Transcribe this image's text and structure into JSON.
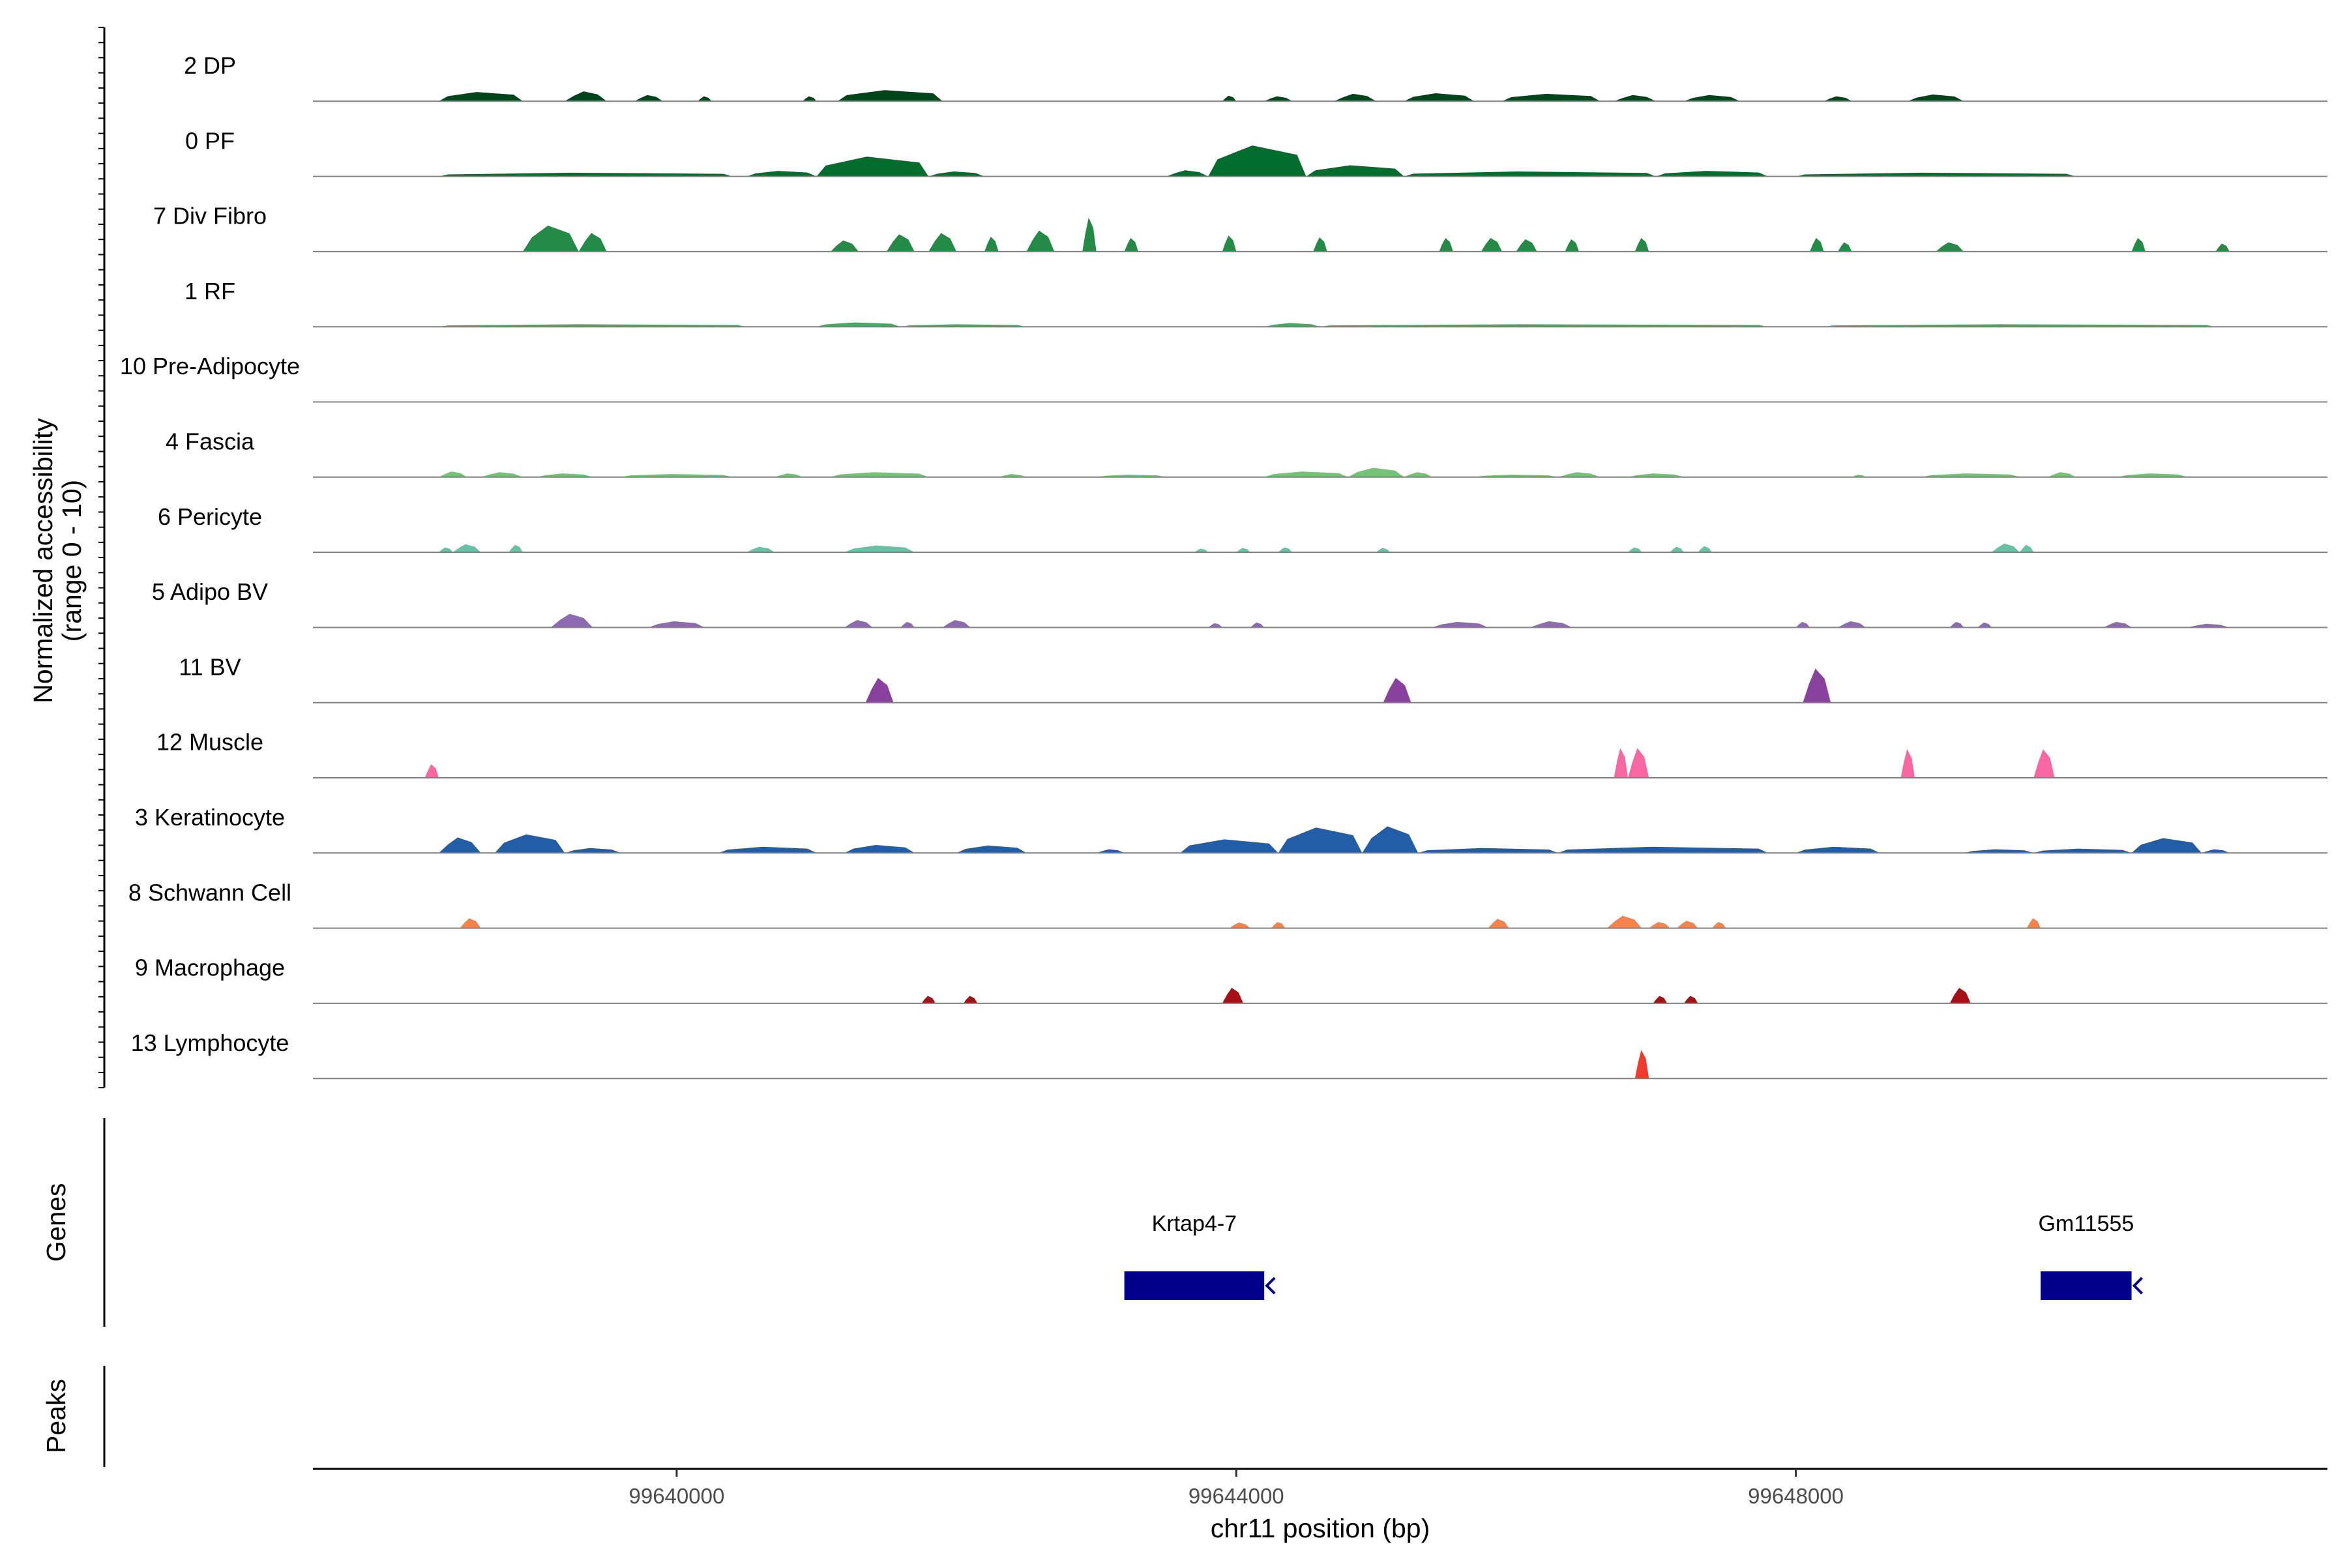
{
  "chart_data": {
    "type": "area",
    "layout": "stacked-tracks",
    "y_axis_label_line1": "Normalized accessibility",
    "y_axis_label_line2": "(range 0 - 10)",
    "ylim": [
      0,
      10
    ],
    "xlabel": "chr11 position (bp)",
    "xlim": [
      99637400,
      99651800
    ],
    "x_ticks": [
      {
        "value": 99640000,
        "label": "99640000"
      },
      {
        "value": 99644000,
        "label": "99644000"
      },
      {
        "value": 99648000,
        "label": "99648000"
      }
    ],
    "tracks": [
      {
        "name": "2 DP",
        "color": "#00441b",
        "peaks": [
          [
            99638300,
            99638900,
            1.5
          ],
          [
            99639200,
            99639500,
            1.6
          ],
          [
            99639700,
            99639900,
            1.0
          ],
          [
            99640150,
            99640250,
            0.8
          ],
          [
            99640900,
            99641000,
            0.8
          ],
          [
            99641150,
            99641900,
            1.8
          ],
          [
            99643900,
            99644000,
            0.9
          ],
          [
            99644200,
            99644400,
            0.8
          ],
          [
            99644700,
            99645000,
            1.2
          ],
          [
            99645200,
            99645700,
            1.3
          ],
          [
            99645900,
            99646600,
            1.2
          ],
          [
            99646700,
            99647000,
            1.0
          ],
          [
            99647200,
            99647600,
            1.0
          ],
          [
            99648200,
            99648400,
            0.8
          ],
          [
            99648800,
            99649200,
            1.1
          ]
        ]
      },
      {
        "name": "0 PF",
        "color": "#006d2c",
        "peaks": [
          [
            99638300,
            99640400,
            0.6
          ],
          [
            99640500,
            99641000,
            0.9
          ],
          [
            99641000,
            99641800,
            3.2
          ],
          [
            99641800,
            99642200,
            0.8
          ],
          [
            99643500,
            99643800,
            1.0
          ],
          [
            99643800,
            99644500,
            5.0
          ],
          [
            99644500,
            99645200,
            1.8
          ],
          [
            99645200,
            99647000,
            0.8
          ],
          [
            99647000,
            99647800,
            0.9
          ],
          [
            99648000,
            99650000,
            0.6
          ]
        ]
      },
      {
        "name": "7 Div Fibro",
        "color": "#238b45",
        "peaks": [
          [
            99638900,
            99639300,
            4.2
          ],
          [
            99639300,
            99639500,
            3.0
          ],
          [
            99641100,
            99641300,
            1.8
          ],
          [
            99641500,
            99641700,
            2.8
          ],
          [
            99641800,
            99642000,
            3.0
          ],
          [
            99642200,
            99642300,
            2.4
          ],
          [
            99642500,
            99642700,
            3.4
          ],
          [
            99642900,
            99643000,
            5.5
          ],
          [
            99643200,
            99643300,
            2.2
          ],
          [
            99643900,
            99644000,
            2.6
          ],
          [
            99644550,
            99644650,
            2.3
          ],
          [
            99645450,
            99645550,
            2.2
          ],
          [
            99645750,
            99645900,
            2.2
          ],
          [
            99646000,
            99646150,
            2.0
          ],
          [
            99646350,
            99646450,
            2.0
          ],
          [
            99646850,
            99646950,
            2.2
          ],
          [
            99648100,
            99648200,
            2.2
          ],
          [
            99648300,
            99648400,
            1.5
          ],
          [
            99649000,
            99649200,
            1.5
          ],
          [
            99650400,
            99650500,
            2.2
          ],
          [
            99651000,
            99651100,
            1.3
          ]
        ]
      },
      {
        "name": "1 RF",
        "color": "#41ab5d",
        "peaks": [
          [
            99638300,
            99640500,
            0.4
          ],
          [
            99641000,
            99641600,
            0.7
          ],
          [
            99641600,
            99642500,
            0.4
          ],
          [
            99644200,
            99644600,
            0.6
          ],
          [
            99644600,
            99647800,
            0.4
          ],
          [
            99648200,
            99651000,
            0.4
          ]
        ]
      },
      {
        "name": "10 Pre-Adipocyte",
        "color": "#74c476",
        "peaks": []
      },
      {
        "name": "4 Fascia",
        "color": "#74c476",
        "peaks": [
          [
            99638300,
            99638500,
            0.9
          ],
          [
            99638600,
            99638900,
            0.8
          ],
          [
            99639000,
            99639400,
            0.6
          ],
          [
            99639600,
            99640400,
            0.5
          ],
          [
            99640700,
            99640900,
            0.6
          ],
          [
            99641100,
            99641800,
            0.8
          ],
          [
            99642300,
            99642500,
            0.5
          ],
          [
            99643000,
            99643500,
            0.4
          ],
          [
            99644200,
            99644800,
            0.9
          ],
          [
            99644800,
            99645200,
            1.5
          ],
          [
            99645200,
            99645400,
            0.8
          ],
          [
            99645700,
            99646300,
            0.4
          ],
          [
            99646300,
            99646600,
            0.8
          ],
          [
            99646800,
            99647200,
            0.6
          ],
          [
            99648400,
            99648500,
            0.4
          ],
          [
            99648900,
            99649600,
            0.6
          ],
          [
            99649800,
            99650000,
            0.8
          ],
          [
            99650300,
            99650800,
            0.6
          ]
        ]
      },
      {
        "name": "6 Pericyte",
        "color": "#66c2a4",
        "peaks": [
          [
            99638300,
            99638400,
            0.8
          ],
          [
            99638400,
            99638600,
            1.3
          ],
          [
            99638800,
            99638900,
            1.2
          ],
          [
            99640500,
            99640700,
            0.9
          ],
          [
            99641200,
            99641700,
            1.1
          ],
          [
            99643700,
            99643800,
            0.6
          ],
          [
            99644000,
            99644100,
            0.7
          ],
          [
            99644300,
            99644400,
            0.8
          ],
          [
            99645000,
            99645100,
            0.7
          ],
          [
            99646800,
            99646900,
            0.8
          ],
          [
            99647100,
            99647200,
            0.9
          ],
          [
            99647300,
            99647400,
            1.0
          ],
          [
            99649400,
            99649600,
            1.4
          ],
          [
            99649600,
            99649700,
            1.2
          ]
        ]
      },
      {
        "name": "5 Adipo BV",
        "color": "#8c6bb1",
        "peaks": [
          [
            99639100,
            99639400,
            2.2
          ],
          [
            99639800,
            99640200,
            1.0
          ],
          [
            99641200,
            99641400,
            1.2
          ],
          [
            99641600,
            99641700,
            0.9
          ],
          [
            99641900,
            99642100,
            1.2
          ],
          [
            99643800,
            99643900,
            0.7
          ],
          [
            99644100,
            99644200,
            0.8
          ],
          [
            99645400,
            99645800,
            0.9
          ],
          [
            99646100,
            99646400,
            1.0
          ],
          [
            99648000,
            99648100,
            0.9
          ],
          [
            99648300,
            99648500,
            1.0
          ],
          [
            99649100,
            99649200,
            0.9
          ],
          [
            99649300,
            99649400,
            0.8
          ],
          [
            99650200,
            99650400,
            0.9
          ],
          [
            99650800,
            99651100,
            0.6
          ]
        ]
      },
      {
        "name": "11 BV",
        "color": "#88419d",
        "peaks": [
          [
            99641350,
            99641550,
            4.0
          ],
          [
            99645050,
            99645250,
            4.0
          ],
          [
            99648050,
            99648250,
            5.5
          ]
        ]
      },
      {
        "name": "12 Muscle",
        "color": "#f768a1",
        "peaks": [
          [
            99638200,
            99638300,
            2.2
          ],
          [
            99646700,
            99646800,
            4.8
          ],
          [
            99646800,
            99646950,
            4.8
          ],
          [
            99648750,
            99648850,
            4.6
          ],
          [
            99649700,
            99649850,
            4.6
          ]
        ]
      },
      {
        "name": "3 Keratinocyte",
        "color": "#225ea8",
        "peaks": [
          [
            99638300,
            99638600,
            2.5
          ],
          [
            99638700,
            99639200,
            3.0
          ],
          [
            99639200,
            99639600,
            0.8
          ],
          [
            99640300,
            99641000,
            1.0
          ],
          [
            99641200,
            99641700,
            1.3
          ],
          [
            99642000,
            99642500,
            1.2
          ],
          [
            99643000,
            99643200,
            0.6
          ],
          [
            99643600,
            99644300,
            2.2
          ],
          [
            99644300,
            99644900,
            4.1
          ],
          [
            99644900,
            99645300,
            4.3
          ],
          [
            99645300,
            99646300,
            0.8
          ],
          [
            99646300,
            99647800,
            1.0
          ],
          [
            99648000,
            99648600,
            1.0
          ],
          [
            99649200,
            99649700,
            0.6
          ],
          [
            99649700,
            99650400,
            0.7
          ],
          [
            99650400,
            99650900,
            2.4
          ],
          [
            99650900,
            99651100,
            0.6
          ]
        ]
      },
      {
        "name": "8 Schwann Cell",
        "color": "#f4844c",
        "peaks": [
          [
            99638450,
            99638600,
            1.6
          ],
          [
            99643950,
            99644100,
            0.9
          ],
          [
            99644250,
            99644350,
            1.0
          ],
          [
            99645800,
            99645950,
            1.5
          ],
          [
            99646650,
            99646900,
            2.0
          ],
          [
            99646950,
            99647100,
            1.0
          ],
          [
            99647150,
            99647300,
            1.2
          ],
          [
            99647400,
            99647500,
            1.0
          ],
          [
            99649650,
            99649750,
            1.6
          ]
        ]
      },
      {
        "name": "9 Macrophage",
        "color": "#a50f15",
        "peaks": [
          [
            99641750,
            99641850,
            1.2
          ],
          [
            99642050,
            99642150,
            1.2
          ],
          [
            99643900,
            99644050,
            2.5
          ],
          [
            99646980,
            99647080,
            1.2
          ],
          [
            99647200,
            99647300,
            1.2
          ],
          [
            99649100,
            99649250,
            2.5
          ]
        ]
      },
      {
        "name": "13 Lymphocyte",
        "color": "#ef3b2c",
        "peaks": [
          [
            99646850,
            99646950,
            4.6
          ]
        ]
      }
    ],
    "genes_track": {
      "label": "Genes",
      "color": "#00008b",
      "genes": [
        {
          "name": "Krtap4-7",
          "start": 99643200,
          "end": 99644200,
          "strand": "-"
        },
        {
          "name": "Gm11555",
          "start": 99649750,
          "end": 99650400,
          "strand": "-"
        }
      ]
    },
    "peaks_track": {
      "label": "Peaks",
      "peaks": []
    }
  }
}
